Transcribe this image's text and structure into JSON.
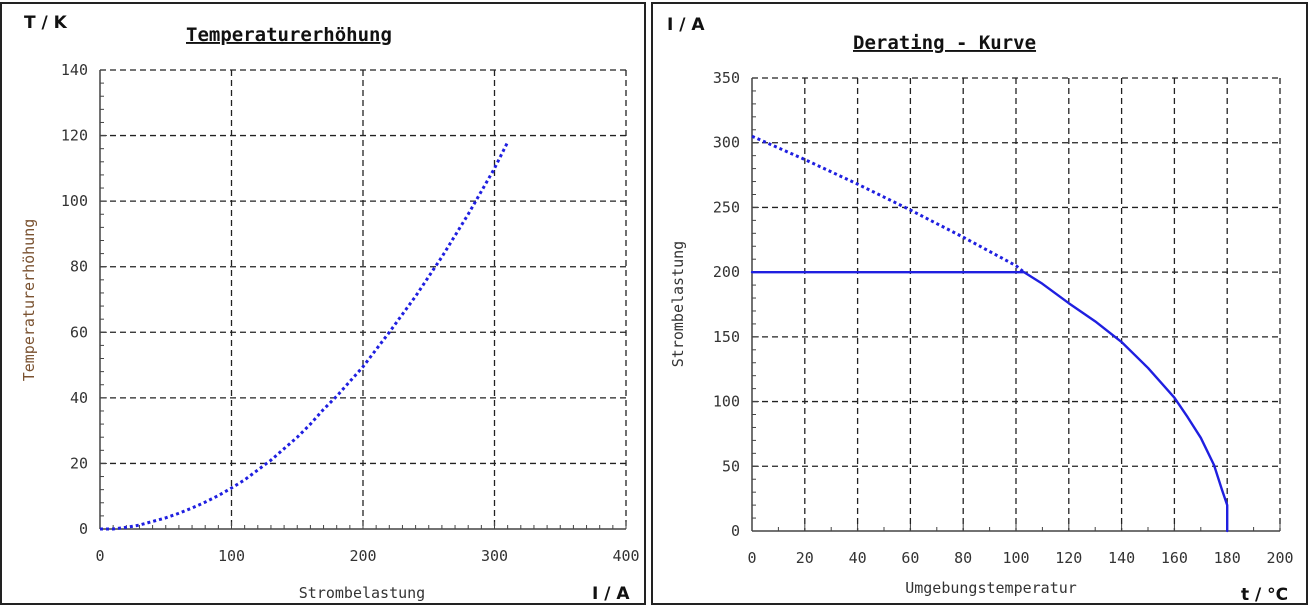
{
  "chart_data": [
    {
      "type": "line",
      "title": "Temperaturerhöhung",
      "xlabel": "Strombelastung",
      "ylabel": "Temperaturerhöhung",
      "x_unit": "I / A",
      "y_unit": "T / K",
      "xlim": [
        0,
        400
      ],
      "ylim": [
        0,
        140
      ],
      "xticks": [
        "0",
        "100",
        "200",
        "300",
        "400"
      ],
      "yticks": [
        "0",
        "20",
        "40",
        "60",
        "80",
        "100",
        "120",
        "140"
      ],
      "grid": true,
      "series": [
        {
          "color": "#1f1fe0",
          "style": "dotted",
          "x": [
            0,
            10,
            20,
            30,
            40,
            50,
            60,
            70,
            80,
            90,
            100,
            110,
            120,
            130,
            140,
            150,
            160,
            170,
            180,
            190,
            200,
            220,
            240,
            260,
            280,
            300,
            310
          ],
          "y": [
            0,
            0,
            0.5,
            1.2,
            2.3,
            3.4,
            4.8,
            6.4,
            8.2,
            10.2,
            12.5,
            15.0,
            18.0,
            21.0,
            24.5,
            28.0,
            32.0,
            36.5,
            40.5,
            45.0,
            49.5,
            60.0,
            71.0,
            83.0,
            96.0,
            110.0,
            118.0
          ]
        }
      ]
    },
    {
      "type": "line",
      "title": "Derating - Kurve",
      "xlabel": "Umgebungstemperatur",
      "ylabel": "Strombelastung",
      "x_unit": "t / °C",
      "y_unit": "I / A",
      "xlim": [
        0,
        200
      ],
      "ylim": [
        0,
        350
      ],
      "xticks": [
        "0",
        "20",
        "40",
        "60",
        "80",
        "100",
        "120",
        "140",
        "160",
        "180",
        "200"
      ],
      "yticks": [
        "0",
        "50",
        "100",
        "150",
        "200",
        "250",
        "300",
        "350"
      ],
      "grid": true,
      "series": [
        {
          "color": "#1f1fe0",
          "style": "dotted",
          "x": [
            0,
            20,
            40,
            60,
            80,
            100,
            103
          ],
          "y": [
            305,
            287,
            268,
            248,
            227,
            205,
            200
          ]
        },
        {
          "color": "#1f1fe0",
          "style": "solid",
          "x": [
            0,
            40,
            103,
            110,
            120,
            130,
            140,
            150,
            160,
            165,
            170,
            175,
            178,
            180,
            180
          ],
          "y": [
            200,
            200,
            200,
            191,
            176,
            162,
            146,
            126,
            103,
            88,
            72,
            51,
            32,
            20,
            0
          ]
        }
      ]
    }
  ]
}
